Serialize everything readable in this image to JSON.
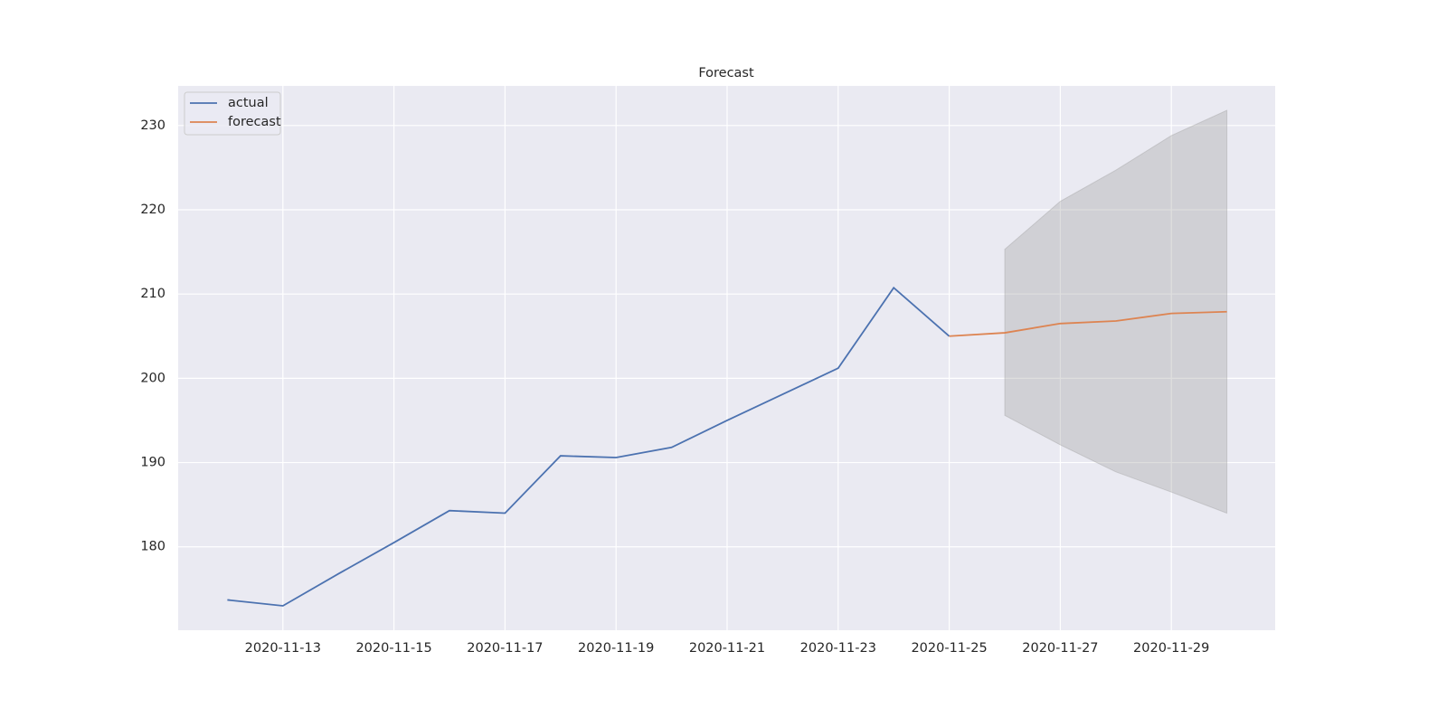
{
  "chart_data": {
    "type": "line",
    "title": "Forecast",
    "series": [
      {
        "name": "actual",
        "color": "#4c72b0",
        "x": [
          "2020-11-12",
          "2020-11-13",
          "2020-11-14",
          "2020-11-15",
          "2020-11-16",
          "2020-11-17",
          "2020-11-18",
          "2020-11-19",
          "2020-11-20",
          "2020-11-21",
          "2020-11-22",
          "2020-11-23",
          "2020-11-24",
          "2020-11-25"
        ],
        "values": [
          173.7,
          173.0,
          176.8,
          180.5,
          184.3,
          184.0,
          190.8,
          190.6,
          191.8,
          195.0,
          198.1,
          201.2,
          210.75,
          205.0
        ]
      },
      {
        "name": "forecast",
        "color": "#dd8452",
        "x": [
          "2020-11-25",
          "2020-11-26",
          "2020-11-27",
          "2020-11-28",
          "2020-11-29",
          "2020-11-30"
        ],
        "values": [
          205.0,
          205.4,
          206.5,
          206.8,
          207.7,
          207.9
        ]
      }
    ],
    "band": {
      "color": "#a0a0a0",
      "x": [
        "2020-11-26",
        "2020-11-27",
        "2020-11-28",
        "2020-11-29",
        "2020-11-30"
      ],
      "lower": [
        195.6,
        192.1,
        188.9,
        186.5,
        184.0
      ],
      "upper": [
        215.3,
        221.0,
        224.7,
        228.8,
        231.8
      ]
    },
    "xlim": [
      "2020-11-11",
      "2020-12-01"
    ],
    "xticks": [
      "2020-11-13",
      "2020-11-15",
      "2020-11-17",
      "2020-11-19",
      "2020-11-21",
      "2020-11-23",
      "2020-11-25",
      "2020-11-27",
      "2020-11-29"
    ],
    "ylim": [
      170.1,
      234.7
    ],
    "yticks": [
      180,
      190,
      200,
      210,
      220,
      230
    ],
    "grid": true,
    "legend": "upper-left"
  }
}
